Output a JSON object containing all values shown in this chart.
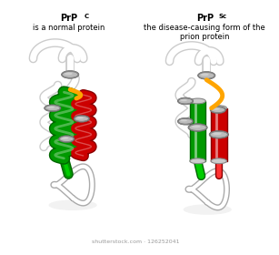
{
  "bg": "#ffffff",
  "title_left": "PrP",
  "super_left": "C",
  "sub_left": "is a normal protein",
  "title_right": "PrP",
  "super_right": "Sc",
  "sub_right1": "the disease-causing form of the",
  "sub_right2": "prion protein",
  "watermark": "shutterstock.com · 126252041",
  "green_dark": "#006600",
  "green_mid": "#009900",
  "green_light": "#00cc00",
  "red_dark": "#880000",
  "red_mid": "#cc0000",
  "red_light": "#ff3333",
  "orange": "#ffa500",
  "white": "#ffffff",
  "grey_dark": "#555555",
  "grey_mid": "#888888",
  "grey_light": "#bbbbbb",
  "coil_edge": "#aaaaaa"
}
